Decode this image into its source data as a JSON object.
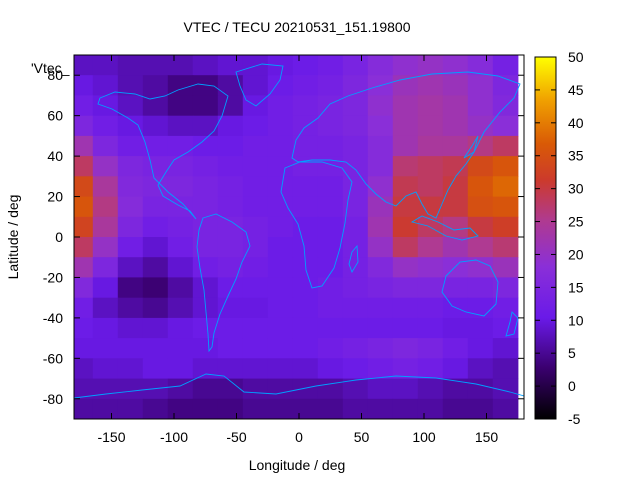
{
  "chart_data": {
    "type": "heatmap",
    "title": "VTEC / TECU 20210531_151.19800",
    "xlabel": "Longitude / deg",
    "ylabel": "Latitude / deg",
    "key_label": "'Vtec_",
    "xlim": [
      -180,
      180
    ],
    "ylim": [
      -90,
      90
    ],
    "x_ticks": [
      -150,
      -100,
      -50,
      0,
      50,
      100,
      150
    ],
    "y_ticks": [
      -80,
      -60,
      -40,
      -20,
      0,
      20,
      40,
      60,
      80
    ],
    "x_tick_labels": [
      "-150",
      "-100",
      "-50",
      "0",
      "50",
      "100",
      "150"
    ],
    "y_tick_labels": [
      "-80",
      "-60",
      "-40",
      "-20",
      "0",
      "20",
      "40",
      "60",
      "80"
    ],
    "colorbar": {
      "range": [
        -5,
        50
      ],
      "ticks": [
        -5,
        0,
        5,
        10,
        15,
        20,
        25,
        30,
        35,
        40,
        45,
        50
      ],
      "tick_labels": [
        "-5",
        "0",
        "5",
        "10",
        "15",
        "20",
        "25",
        "30",
        "35",
        "40",
        "45",
        "50"
      ]
    },
    "lat": [
      85,
      75,
      65,
      55,
      45,
      35,
      25,
      15,
      5,
      -5,
      -15,
      -25,
      -35,
      -45,
      -55,
      -65,
      -75,
      -85
    ],
    "lon": [
      -175,
      -155,
      -135,
      -115,
      -95,
      -75,
      -55,
      -35,
      -15,
      5,
      25,
      45,
      65,
      85,
      105,
      125,
      145,
      165
    ],
    "values": [
      [
        8,
        8,
        7,
        7,
        7,
        8,
        9,
        9,
        10,
        11,
        12,
        14,
        17,
        19,
        20,
        19,
        17,
        13
      ],
      [
        10,
        9,
        7,
        6,
        4,
        4,
        6,
        9,
        11,
        12,
        13,
        15,
        18,
        21,
        22,
        21,
        19,
        15
      ],
      [
        12,
        10,
        8,
        6,
        4,
        4,
        6,
        10,
        12,
        13,
        14,
        15,
        19,
        22,
        23,
        22,
        19,
        16
      ],
      [
        15,
        12,
        10,
        9,
        8,
        8,
        10,
        11,
        12,
        13,
        14,
        15,
        18,
        22,
        23,
        22,
        20,
        18
      ],
      [
        22,
        15,
        12,
        12,
        12,
        11,
        11,
        12,
        12,
        13,
        13,
        14,
        17,
        22,
        24,
        24,
        26,
        28
      ],
      [
        28,
        20,
        15,
        14,
        14,
        13,
        12,
        12,
        12,
        13,
        13,
        14,
        17,
        27,
        28,
        29,
        34,
        36
      ],
      [
        34,
        24,
        16,
        15,
        15,
        14,
        13,
        12,
        12,
        12,
        12,
        14,
        19,
        29,
        28,
        30,
        36,
        38
      ],
      [
        36,
        26,
        17,
        14,
        14,
        14,
        13,
        12,
        12,
        12,
        12,
        14,
        21,
        30,
        30,
        30,
        35,
        36
      ],
      [
        33,
        24,
        15,
        12,
        13,
        14,
        14,
        13,
        12,
        11,
        11,
        13,
        22,
        31,
        28,
        26,
        30,
        32
      ],
      [
        28,
        20,
        12,
        9,
        12,
        14,
        14,
        13,
        11,
        11,
        11,
        13,
        20,
        28,
        25,
        22,
        25,
        27
      ],
      [
        22,
        15,
        8,
        6,
        9,
        12,
        13,
        12,
        11,
        11,
        11,
        13,
        16,
        20,
        19,
        18,
        19,
        21
      ],
      [
        16,
        10,
        4,
        3,
        6,
        9,
        11,
        11,
        11,
        11,
        12,
        13,
        14,
        15,
        15,
        14,
        14,
        15
      ],
      [
        12,
        8,
        6,
        5,
        7,
        9,
        10,
        10,
        11,
        11,
        12,
        12,
        12,
        12,
        12,
        11,
        11,
        12
      ],
      [
        11,
        10,
        9,
        9,
        10,
        11,
        11,
        11,
        11,
        11,
        11,
        11,
        11,
        11,
        11,
        10,
        10,
        11
      ],
      [
        10,
        10,
        10,
        10,
        10,
        10,
        11,
        11,
        11,
        11,
        12,
        13,
        14,
        15,
        14,
        12,
        10,
        9
      ],
      [
        8,
        9,
        9,
        10,
        10,
        9,
        9,
        9,
        9,
        9,
        10,
        11,
        12,
        13,
        12,
        10,
        8,
        7
      ],
      [
        7,
        7,
        7,
        7,
        6,
        5,
        5,
        6,
        6,
        6,
        6,
        7,
        8,
        8,
        7,
        6,
        6,
        7
      ],
      [
        6,
        6,
        6,
        5,
        4,
        4,
        4,
        5,
        5,
        5,
        5,
        6,
        6,
        6,
        6,
        5,
        5,
        6
      ]
    ]
  },
  "coastline_color": "#00a0ff"
}
